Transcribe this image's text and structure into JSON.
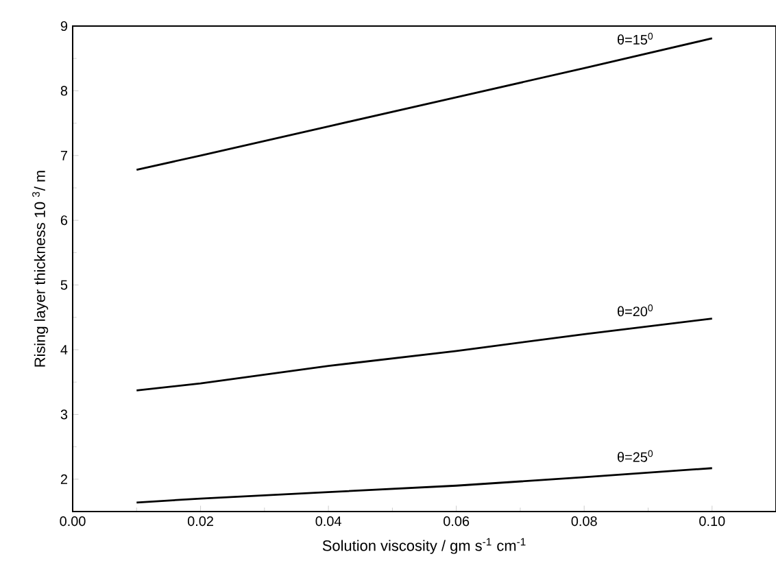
{
  "chart_data": {
    "type": "line",
    "xlabel": "Solution viscosity / gm s$^{-1}$ cm$^{-1}$",
    "ylabel": "Rising layer thickness 10 $^{3}$/ m",
    "xlim": [
      0,
      0.11
    ],
    "ylim": [
      1.5,
      9
    ],
    "xticks": [
      {
        "value": 0,
        "label": "0.00"
      },
      {
        "value": 0.02,
        "label": "0.02"
      },
      {
        "value": 0.04,
        "label": "0.04"
      },
      {
        "value": 0.06,
        "label": "0.06"
      },
      {
        "value": 0.08,
        "label": "0.08"
      },
      {
        "value": 0.1,
        "label": "0.10"
      }
    ],
    "yticks": [
      2,
      3,
      4,
      5,
      6,
      7,
      8,
      9
    ],
    "grid": false,
    "legend": false,
    "marker": "none",
    "line_style": "solid",
    "x": [
      0.01,
      0.02,
      0.04,
      0.06,
      0.08,
      0.1
    ],
    "series": [
      {
        "name": "θ=15$^{0}$",
        "color": "#000000",
        "values": [
          6.78,
          7.0,
          7.45,
          7.9,
          8.35,
          8.81
        ]
      },
      {
        "name": "θ=20$^{0}$",
        "color": "#000000",
        "values": [
          3.37,
          3.48,
          3.75,
          3.98,
          4.24,
          4.48
        ]
      },
      {
        "name": "θ=25$^{0}$",
        "color": "#000000",
        "values": [
          1.64,
          1.7,
          1.8,
          1.9,
          2.03,
          2.17
        ]
      }
    ]
  }
}
